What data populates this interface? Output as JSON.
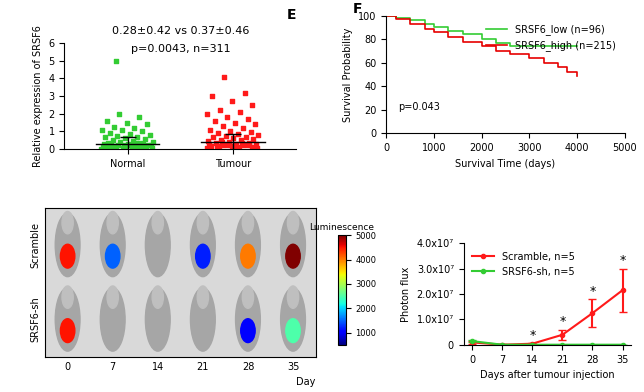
{
  "chart_data": [
    {
      "type": "strip",
      "panel_label": "E",
      "categories": [
        "Normal",
        "Tumour"
      ],
      "colors": [
        "#33cc33",
        "#ff1a1a"
      ],
      "values": [
        [
          0.02,
          0.05,
          0.08,
          0.1,
          0.12,
          0.15,
          0.18,
          0.2,
          0.22,
          0.25,
          0.27,
          0.3,
          0.05,
          0.1,
          0.14,
          0.19,
          0.23,
          0.28,
          0.33,
          0.35,
          0.38,
          0.4,
          0.45,
          0.5,
          0.55,
          0.6,
          0.65,
          0.7,
          0.75,
          0.8,
          0.85,
          0.9,
          1.0,
          1.05,
          1.1,
          1.2,
          1.25,
          1.4,
          1.5,
          1.6,
          1.8,
          2.0,
          0.03,
          0.07,
          0.11,
          0.16,
          0.21,
          0.26,
          0.31,
          5.0
        ],
        [
          0.03,
          0.06,
          0.09,
          0.12,
          0.15,
          0.18,
          0.21,
          0.24,
          0.27,
          0.3,
          0.33,
          0.36,
          0.4,
          0.44,
          0.48,
          0.52,
          0.56,
          0.6,
          0.65,
          0.7,
          0.75,
          0.8,
          0.85,
          0.9,
          0.95,
          1.0,
          1.1,
          1.2,
          1.3,
          1.4,
          1.5,
          1.6,
          1.7,
          1.8,
          2.0,
          2.1,
          2.2,
          2.5,
          2.7,
          3.0,
          3.2,
          4.1,
          0.05,
          0.1,
          0.14,
          0.2,
          0.25,
          0.29,
          0.35,
          0.42
        ]
      ],
      "mean": [
        0.28,
        0.37
      ],
      "sd": [
        0.42,
        0.46
      ],
      "annotations": [
        "0.28±0.42 vs 0.37±0.46",
        "p=0.0043, n=311"
      ],
      "y_label": "Relative expression of SRSF6",
      "ylim": [
        0,
        6
      ],
      "yticks": [
        0,
        1,
        2,
        3,
        4,
        5,
        6
      ]
    },
    {
      "type": "line",
      "panel_label": "F",
      "series": [
        {
          "name": "SRSF6_low (n=96)",
          "color": "#33cc33",
          "line_style": "steps",
          "x": [
            0,
            200,
            500,
            800,
            1000,
            1300,
            1600,
            2000,
            2300,
            2600,
            3000,
            3500,
            4000
          ],
          "values": [
            100,
            98,
            96,
            93,
            90,
            87,
            84,
            80,
            77,
            74,
            74,
            74,
            74
          ]
        },
        {
          "name": "SRSF6_high (n=215)",
          "color": "#e60000",
          "line_style": "steps",
          "x": [
            0,
            200,
            500,
            800,
            1000,
            1300,
            1600,
            2000,
            2300,
            2600,
            3000,
            3300,
            3600,
            3800,
            4000
          ],
          "values": [
            100,
            97,
            93,
            89,
            86,
            82,
            78,
            74,
            70,
            67,
            64,
            60,
            56,
            52,
            49
          ]
        }
      ],
      "annotations": [
        "p=0.043"
      ],
      "x_label": "Survival Time (days)",
      "y_label": "Survival Probability",
      "xlim": [
        0,
        5000
      ],
      "xticks": [
        0,
        1000,
        2000,
        3000,
        4000,
        5000
      ],
      "ylim": [
        0,
        100
      ],
      "yticks": [
        0,
        20,
        40,
        60,
        80,
        100
      ],
      "legend": "upper right"
    },
    {
      "type": "heatmap",
      "rows": [
        "Scramble",
        "SRSF6-sh"
      ],
      "columns": [
        0,
        7,
        14,
        21,
        28,
        35
      ],
      "values": [
        [
          4500,
          1500,
          null,
          1200,
          4000,
          5000
        ],
        [
          4500,
          null,
          null,
          null,
          1000,
          2500
        ]
      ],
      "x_label": "Day",
      "colorbar": {
        "label": "Luminescence",
        "range": [
          500,
          5000
        ],
        "ticks": [
          1000,
          2000,
          3000,
          4000,
          5000
        ]
      }
    },
    {
      "type": "line",
      "series": [
        {
          "name": "Scramble, n=5",
          "color": "#ff1a1a",
          "marker": "o",
          "x": [
            0,
            7,
            14,
            21,
            28,
            35
          ],
          "values": [
            1000000,
            100000,
            500000,
            4000000,
            12500000,
            21500000
          ],
          "errors": [
            500000,
            100000,
            300000,
            2000000,
            5500000,
            8500000
          ]
        },
        {
          "name": "SRSF6-sh, n=5",
          "color": "#33cc33",
          "marker": "o",
          "x": [
            0,
            7,
            14,
            21,
            28,
            35
          ],
          "values": [
            1500000,
            100000,
            100000,
            100000,
            100000,
            100000
          ],
          "errors": [
            300000,
            50000,
            50000,
            50000,
            50000,
            50000
          ]
        }
      ],
      "annotations": [
        {
          "x": 14,
          "text": "*"
        },
        {
          "x": 21,
          "text": "*"
        },
        {
          "x": 28,
          "text": "*"
        },
        {
          "x": 35,
          "text": "*"
        }
      ],
      "x_label": "Days after tumour injection",
      "y_label": "Photon flux",
      "xlim": [
        -2,
        37
      ],
      "xticks": [
        0,
        7,
        14,
        21,
        28,
        35
      ],
      "ylim": [
        0,
        40000000
      ],
      "yticks": [
        0,
        {
          "value": 10000000,
          "label": "1.0x10⁷"
        },
        {
          "value": 20000000,
          "label": "2.0x10⁷"
        },
        {
          "value": 30000000,
          "label": "3.0x10⁷"
        },
        {
          "value": 40000000,
          "label": "4.0x10⁷"
        }
      ],
      "legend": "upper left"
    }
  ]
}
